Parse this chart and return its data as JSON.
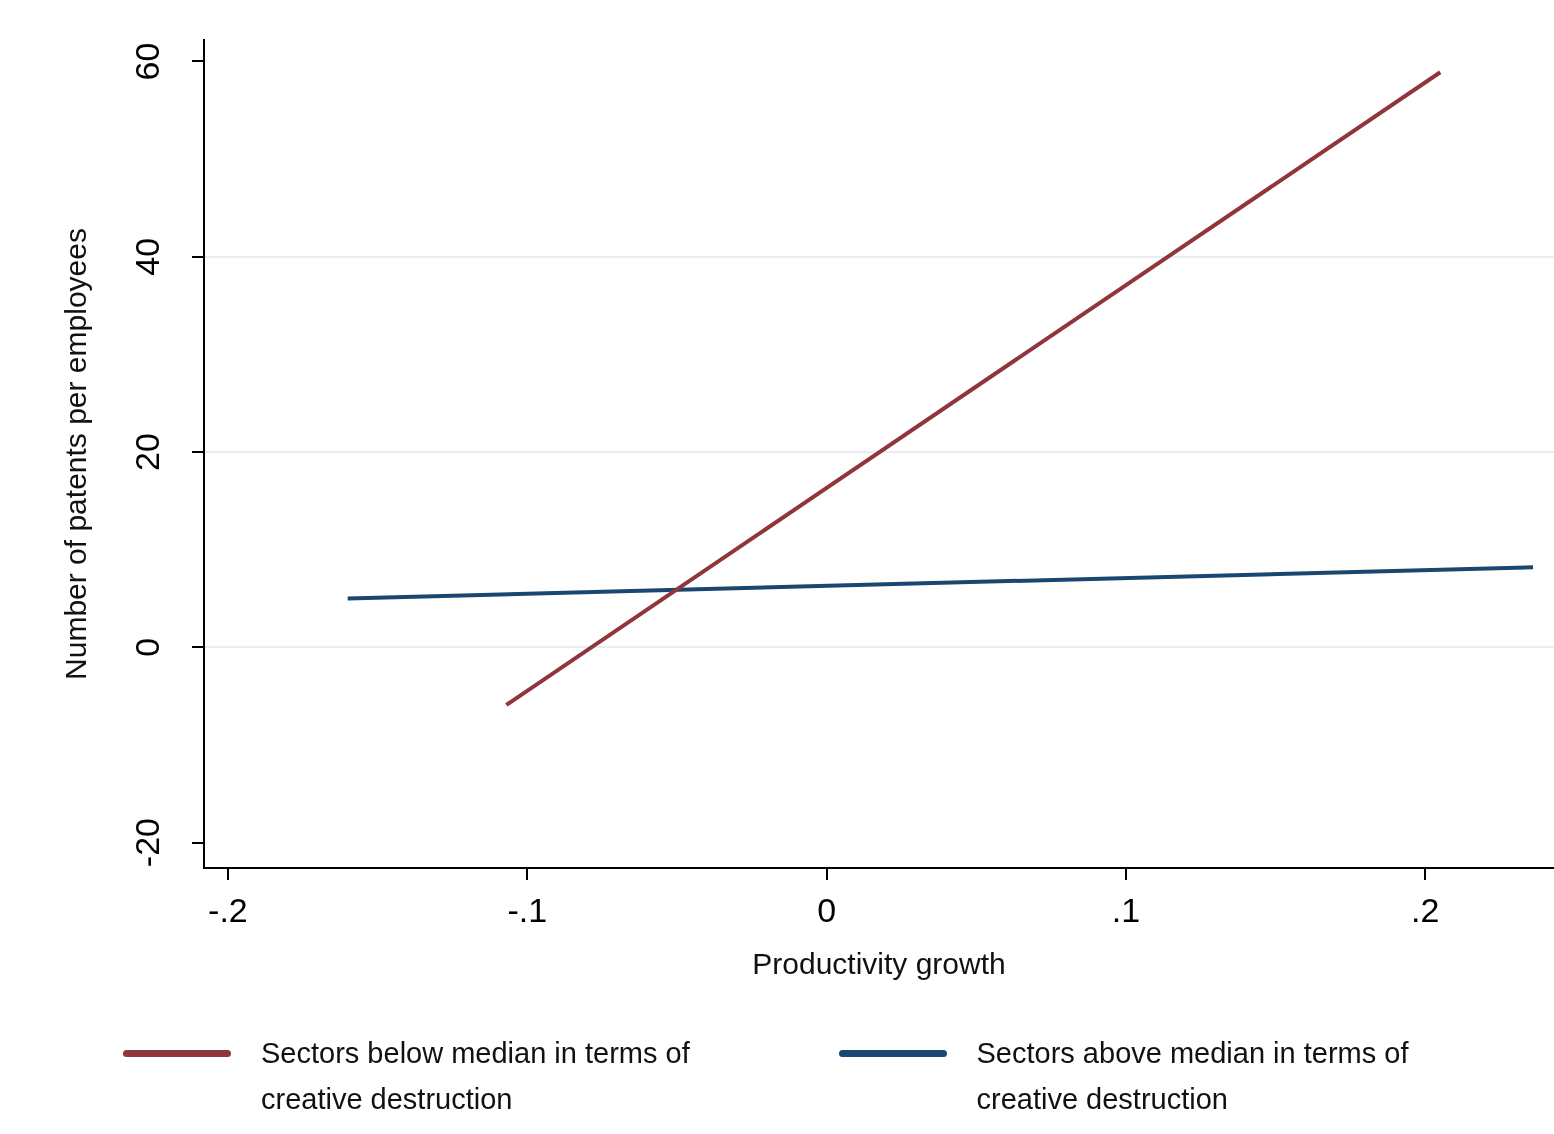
{
  "chart_data": {
    "type": "line",
    "xlabel": "Productivity growth",
    "ylabel": "Number of patents per employees",
    "xlim": [
      -0.208,
      0.243
    ],
    "xticks": [
      {
        "value": -0.2,
        "label": "-.2"
      },
      {
        "value": -0.1,
        "label": "-.1"
      },
      0,
      {
        "value": 0.1,
        "label": ".1"
      },
      {
        "value": 0.2,
        "label": ".2"
      }
    ],
    "ylim": [
      -22.6,
      62.2
    ],
    "yticks": [
      -20,
      0,
      20,
      40,
      60
    ],
    "grid": "y",
    "legend": "bottom",
    "marker": "none",
    "line_style": "solid",
    "series": [
      {
        "name": "Sectors below median in terms of creative destruction",
        "color": "#90353b",
        "x": [
          -0.107,
          0.205
        ],
        "values": [
          -5.9,
          58.9
        ]
      },
      {
        "name": "Sectors above median in terms of creative destruction",
        "color": "#1a476f",
        "x": [
          -0.16,
          0.236
        ],
        "values": [
          5,
          8.2
        ]
      }
    ]
  }
}
